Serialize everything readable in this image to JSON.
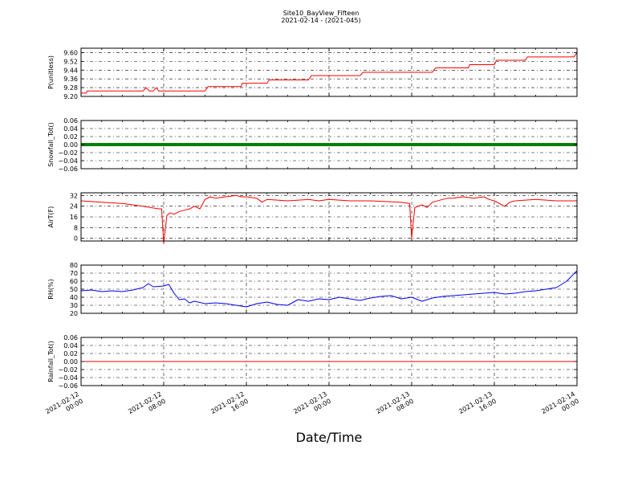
{
  "title": "Site10_BayView_Fifteen",
  "subtitle": "2021-02-14 - (2021-045)",
  "xlabel": "Date/Time",
  "x_ticks": [
    {
      "line1": "2021-02-12",
      "line2": "00:00",
      "pos": 0
    },
    {
      "line1": "2021-02-12",
      "line2": "08:00",
      "pos": 8
    },
    {
      "line1": "2021-02-12",
      "line2": "16:00",
      "pos": 16
    },
    {
      "line1": "2021-02-13",
      "line2": "00:00",
      "pos": 24
    },
    {
      "line1": "2021-02-13",
      "line2": "08:00",
      "pos": 32
    },
    {
      "line1": "2021-02-13",
      "line2": "16:00",
      "pos": 40
    },
    {
      "line1": "2021-02-14",
      "line2": "00:00",
      "pos": 48
    }
  ],
  "chart_data": [
    {
      "type": "line",
      "ylabel": "P(unitless)",
      "ylim": [
        9.2,
        9.64
      ],
      "yticks": [
        "9.60",
        "9.52",
        "9.44",
        "9.36",
        "9.28",
        "9.20"
      ],
      "ytick_values": [
        9.6,
        9.52,
        9.44,
        9.36,
        9.28,
        9.2
      ],
      "color": "#ff0000",
      "grid": true,
      "x": [
        0,
        0.5,
        0.6,
        1,
        6,
        6.3,
        6.6,
        7,
        7.3,
        7.5,
        12,
        12.3,
        15.5,
        15.6,
        18,
        18.2,
        22,
        22.3,
        27,
        27.3,
        34,
        34.3,
        37.5,
        37.6,
        40,
        40.2,
        43,
        43.2,
        47.7,
        48
      ],
      "y": [
        9.23,
        9.23,
        9.25,
        9.25,
        9.25,
        9.28,
        9.25,
        9.25,
        9.28,
        9.25,
        9.25,
        9.29,
        9.29,
        9.32,
        9.32,
        9.35,
        9.35,
        9.39,
        9.39,
        9.42,
        9.42,
        9.46,
        9.46,
        9.49,
        9.49,
        9.53,
        9.53,
        9.56,
        9.56,
        9.6
      ]
    },
    {
      "type": "line",
      "ylabel": "Snowfall_Tot()",
      "ylim": [
        -0.06,
        0.06
      ],
      "yticks": [
        "0.06",
        "0.04",
        "0.02",
        "0.00",
        "−0.02",
        "−0.04",
        "−0.06"
      ],
      "ytick_values": [
        0.06,
        0.04,
        0.02,
        0,
        -0.02,
        -0.04,
        -0.06
      ],
      "color": "#008000",
      "line_width": 4,
      "grid": true,
      "x": [
        0,
        48
      ],
      "y": [
        0,
        0
      ]
    },
    {
      "type": "line",
      "ylabel": "AirT(F)",
      "ylim": [
        -2,
        34
      ],
      "yticks": [
        "32",
        "24",
        "16",
        "8",
        "0"
      ],
      "ytick_values": [
        32,
        24,
        16,
        8,
        0
      ],
      "color": "#ff0000",
      "grid": true,
      "x": [
        0,
        2,
        4,
        6,
        7.5,
        7.8,
        8,
        8.3,
        8.6,
        9,
        9.5,
        10,
        10.5,
        11,
        11.5,
        12,
        12.5,
        13,
        14,
        15,
        15.5,
        16,
        17,
        17.5,
        18,
        20,
        22,
        23,
        24,
        26,
        28,
        31,
        31.8,
        32,
        32.3,
        33,
        33.5,
        34,
        35,
        35.5,
        36,
        37,
        38,
        39,
        39.5,
        40,
        40.5,
        41,
        41.5,
        42,
        44,
        46,
        48
      ],
      "y": [
        28,
        27,
        26,
        24,
        22,
        22,
        -4,
        17,
        19,
        18,
        20,
        21,
        22,
        24,
        22,
        29,
        31,
        30,
        31,
        32,
        31,
        31,
        30,
        27,
        29,
        28,
        29,
        28,
        29,
        28,
        28,
        27,
        26,
        0,
        23,
        25,
        23,
        27,
        29,
        30,
        30,
        31,
        30,
        31,
        29,
        28,
        26,
        24,
        27,
        28,
        29,
        28,
        28
      ]
    },
    {
      "type": "line",
      "ylabel": "RH(%)",
      "ylim": [
        20,
        80
      ],
      "yticks": [
        "80",
        "70",
        "60",
        "50",
        "40",
        "30",
        "20"
      ],
      "ytick_values": [
        80,
        70,
        60,
        50,
        40,
        30,
        20
      ],
      "color": "#0000ff",
      "grid": true,
      "x": [
        0,
        1,
        2,
        3,
        4,
        5,
        6,
        6.5,
        7,
        8,
        8.5,
        9,
        9.5,
        10,
        10.5,
        11,
        12,
        13,
        14,
        15,
        16,
        17,
        18,
        19,
        20,
        21,
        22,
        23,
        24,
        25,
        26,
        27,
        28,
        29,
        30,
        31,
        32,
        33,
        34,
        35,
        36,
        37,
        38,
        39,
        40,
        41,
        42,
        43,
        44,
        45,
        46,
        47,
        48
      ],
      "y": [
        48,
        49,
        47,
        48,
        47,
        49,
        52,
        57,
        53,
        54,
        56,
        45,
        37,
        38,
        33,
        35,
        32,
        33,
        32,
        30,
        28,
        32,
        34,
        31,
        30,
        37,
        35,
        38,
        37,
        40,
        38,
        36,
        39,
        41,
        42,
        38,
        40,
        35,
        39,
        41,
        42,
        43,
        44,
        45,
        46,
        44,
        45,
        47,
        48,
        50,
        52,
        60,
        73
      ]
    },
    {
      "type": "line",
      "ylabel": "Rainfall_Tot()",
      "ylim": [
        -0.06,
        0.06
      ],
      "yticks": [
        "0.06",
        "0.04",
        "0.02",
        "0.00",
        "−0.02",
        "−0.04",
        "−0.06"
      ],
      "ytick_values": [
        0.06,
        0.04,
        0.02,
        0,
        -0.02,
        -0.04,
        -0.06
      ],
      "color": "#ff0000",
      "grid": true,
      "x": [
        0,
        48
      ],
      "y": [
        0,
        0
      ]
    }
  ]
}
